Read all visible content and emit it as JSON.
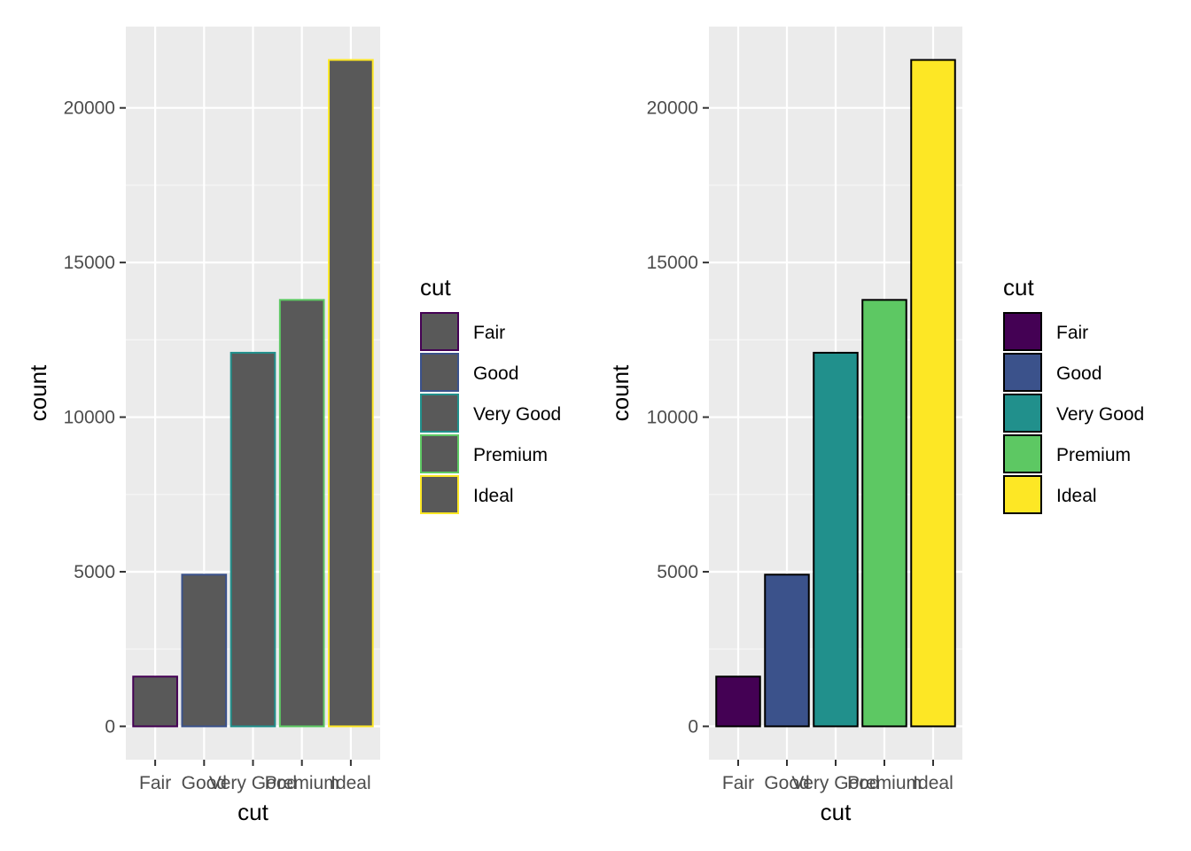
{
  "chart_data": [
    {
      "type": "bar",
      "variant": "colour-mapped outline, grey fill",
      "categories": [
        "Fair",
        "Good",
        "Very Good",
        "Premium",
        "Ideal"
      ],
      "values": [
        1610,
        4906,
        12082,
        13791,
        21551
      ],
      "xlabel": "cut",
      "ylabel": "count",
      "ylim": [
        -1078,
        22629
      ],
      "yticks": [
        0,
        5000,
        10000,
        15000,
        20000
      ],
      "grid": true,
      "panel_background": "#ebebeb",
      "bar_fill": "#595959",
      "bar_outline_colors": [
        "#440154",
        "#3b528b",
        "#21908c",
        "#5dc863",
        "#fde725"
      ],
      "legend": {
        "title": "cut",
        "position": "right",
        "labels": [
          "Fair",
          "Good",
          "Very Good",
          "Premium",
          "Ideal"
        ]
      }
    },
    {
      "type": "bar",
      "variant": "colour-mapped fill, black outline",
      "categories": [
        "Fair",
        "Good",
        "Very Good",
        "Premium",
        "Ideal"
      ],
      "values": [
        1610,
        4906,
        12082,
        13791,
        21551
      ],
      "xlabel": "cut",
      "ylabel": "count",
      "ylim": [
        -1078,
        22629
      ],
      "yticks": [
        0,
        5000,
        10000,
        15000,
        20000
      ],
      "grid": true,
      "panel_background": "#ebebeb",
      "bar_fill_colors": [
        "#440154",
        "#3b528b",
        "#21908c",
        "#5dc863",
        "#fde725"
      ],
      "bar_outline": "#000000",
      "legend": {
        "title": "cut",
        "position": "right",
        "labels": [
          "Fair",
          "Good",
          "Very Good",
          "Premium",
          "Ideal"
        ]
      }
    }
  ]
}
